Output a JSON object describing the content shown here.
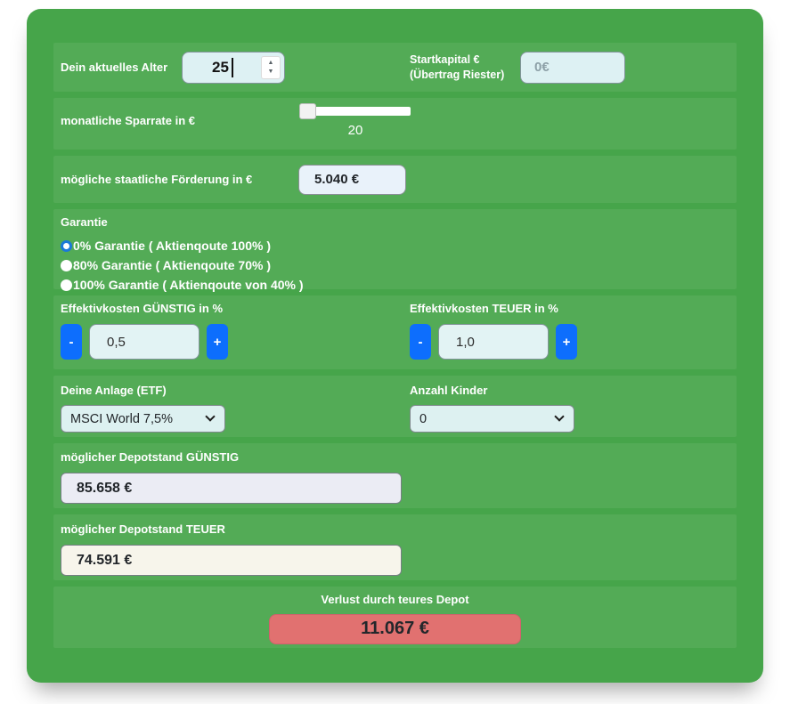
{
  "theme": {
    "card_green": "#46a54a",
    "accent_blue": "#0d6efd",
    "radio_selected_blue": "#1b79d8",
    "input_bg": "#ddf1f3",
    "depot_guenstig_bg": "#ebecf4",
    "depot_teuer_bg": "#f7f5eb",
    "loss_red_bg": "#e17170"
  },
  "calculator": {
    "age": {
      "label": "Dein aktuelles Alter",
      "value": "25"
    },
    "startkapital": {
      "label_line1": "Startkapital €",
      "label_line2": "(Übertrag Riester)",
      "placeholder": "0€"
    },
    "sparrate": {
      "label": "monatliche Sparrate in €",
      "value": "20"
    },
    "foerderung": {
      "label": "mögliche staatliche Förderung in €",
      "value": "5.040 €"
    },
    "garantie": {
      "label": "Garantie",
      "options": [
        {
          "label": "0% Garantie ( Aktienqoute 100% )",
          "selected": true
        },
        {
          "label": "80% Garantie ( Aktienqoute 70% )",
          "selected": false
        },
        {
          "label": "100% Garantie ( Aktienqoute von 40% )",
          "selected": false
        }
      ]
    },
    "kosten_guenstig": {
      "label": "Effektivkosten GÜNSTIG in %",
      "minus_label": "-",
      "plus_label": "+",
      "value": "0,5"
    },
    "kosten_teuer": {
      "label": "Effektivkosten TEUER in %",
      "minus_label": "-",
      "plus_label": "+",
      "value": "1,0"
    },
    "anlage": {
      "label": "Deine Anlage (ETF)",
      "selected_option": "MSCI World 7,5%"
    },
    "kinder": {
      "label": "Anzahl Kinder",
      "selected_option": "0"
    },
    "depot_guenstig": {
      "label": "möglicher Depotstand GÜNSTIG",
      "value": "85.658 €"
    },
    "depot_teuer": {
      "label": "möglicher Depotstand TEUER",
      "value": "74.591 €"
    },
    "verlust": {
      "label": "Verlust durch teures Depot",
      "value": "11.067 €"
    }
  }
}
